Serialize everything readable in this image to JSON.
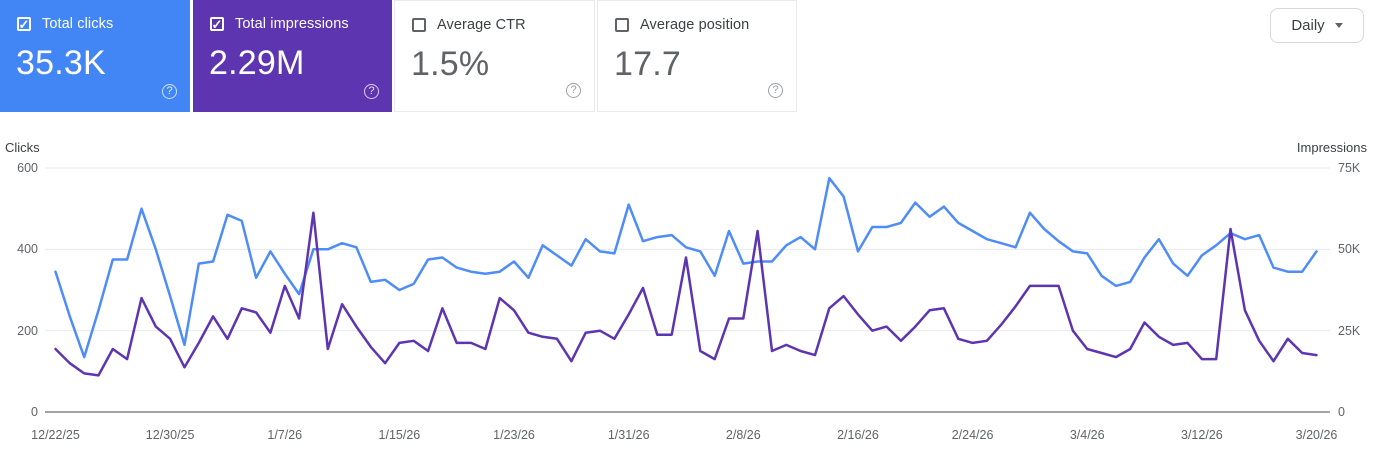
{
  "header": {
    "cards": [
      {
        "label": "Total clicks",
        "value": "35.3K",
        "checked": true,
        "bg": "#4285f4"
      },
      {
        "label": "Total impressions",
        "value": "2.29M",
        "checked": true,
        "bg": "#5e35b1"
      },
      {
        "label": "Average CTR",
        "value": "1.5%",
        "checked": false,
        "bg": "#ffffff"
      },
      {
        "label": "Average position",
        "value": "17.7",
        "checked": false,
        "bg": "#ffffff"
      }
    ],
    "granularity_button": {
      "label": "Daily"
    },
    "help_glyph": "?",
    "check_glyph": "✓"
  },
  "chart_data": {
    "type": "line",
    "grid": true,
    "num_points": 89,
    "date_range": {
      "start": "12/22/25",
      "end": "3/20/26"
    },
    "left_axis": {
      "title": "Clicks",
      "ticks": [
        "0",
        "200",
        "400",
        "600"
      ],
      "tick_values": [
        0,
        200,
        400,
        600
      ],
      "max": 600
    },
    "right_axis": {
      "title": "Impressions",
      "ticks": [
        "0",
        "25K",
        "50K",
        "75K"
      ],
      "tick_values": [
        0,
        25000,
        50000,
        75000
      ],
      "max": 75000
    },
    "x_tick_labels": [
      "12/22/25",
      "12/30/25",
      "1/7/26",
      "1/15/26",
      "1/23/26",
      "1/31/26",
      "2/8/26",
      "2/16/26",
      "2/24/26",
      "3/4/26",
      "3/12/26",
      "3/20/26"
    ],
    "x_tick_day_indices": [
      0,
      8,
      16,
      24,
      32,
      40,
      48,
      56,
      64,
      72,
      80,
      88
    ],
    "series": [
      {
        "name": "Total clicks",
        "axis": "left",
        "color": "#4e8df7",
        "values": [
          345,
          235,
          135,
          250,
          375,
          375,
          500,
          400,
          285,
          165,
          365,
          370,
          485,
          470,
          330,
          395,
          340,
          290,
          400,
          400,
          415,
          405,
          320,
          325,
          300,
          315,
          375,
          380,
          355,
          345,
          340,
          345,
          370,
          330,
          410,
          385,
          360,
          425,
          395,
          390,
          510,
          420,
          430,
          435,
          405,
          395,
          335,
          445,
          365,
          370,
          370,
          410,
          430,
          400,
          575,
          530,
          395,
          455,
          455,
          465,
          515,
          480,
          505,
          465,
          445,
          425,
          415,
          405,
          490,
          450,
          420,
          395,
          390,
          335,
          310,
          320,
          380,
          425,
          365,
          335,
          385,
          410,
          440,
          425,
          435,
          355,
          345,
          345,
          395
        ]
      },
      {
        "name": "Total impressions",
        "axis": "right",
        "color": "#5e35b1",
        "values": [
          19375,
          15000,
          11875,
          11250,
          19375,
          16250,
          35000,
          26250,
          22500,
          13750,
          21250,
          29375,
          22500,
          31875,
          30625,
          24375,
          38750,
          28750,
          61250,
          19375,
          33125,
          26250,
          20000,
          15000,
          21250,
          21875,
          18750,
          31875,
          21250,
          21250,
          19375,
          35000,
          31250,
          24375,
          23125,
          22500,
          15625,
          24375,
          25000,
          22500,
          30000,
          38125,
          23750,
          23750,
          47500,
          18750,
          16250,
          28750,
          28750,
          55625,
          18750,
          20625,
          18750,
          17500,
          31875,
          35625,
          30000,
          25000,
          26250,
          21875,
          26250,
          31250,
          31875,
          22500,
          21250,
          21875,
          26875,
          32500,
          38750,
          38750,
          38750,
          25000,
          19375,
          18125,
          16875,
          19375,
          27500,
          23125,
          20625,
          21250,
          16250,
          16250,
          56250,
          31250,
          21875,
          15625,
          22500,
          18125,
          17500
        ]
      }
    ],
    "colors": {
      "gridline": "#e8eaed",
      "axis_line": "#80868b",
      "tick_text": "#5f6368"
    }
  }
}
